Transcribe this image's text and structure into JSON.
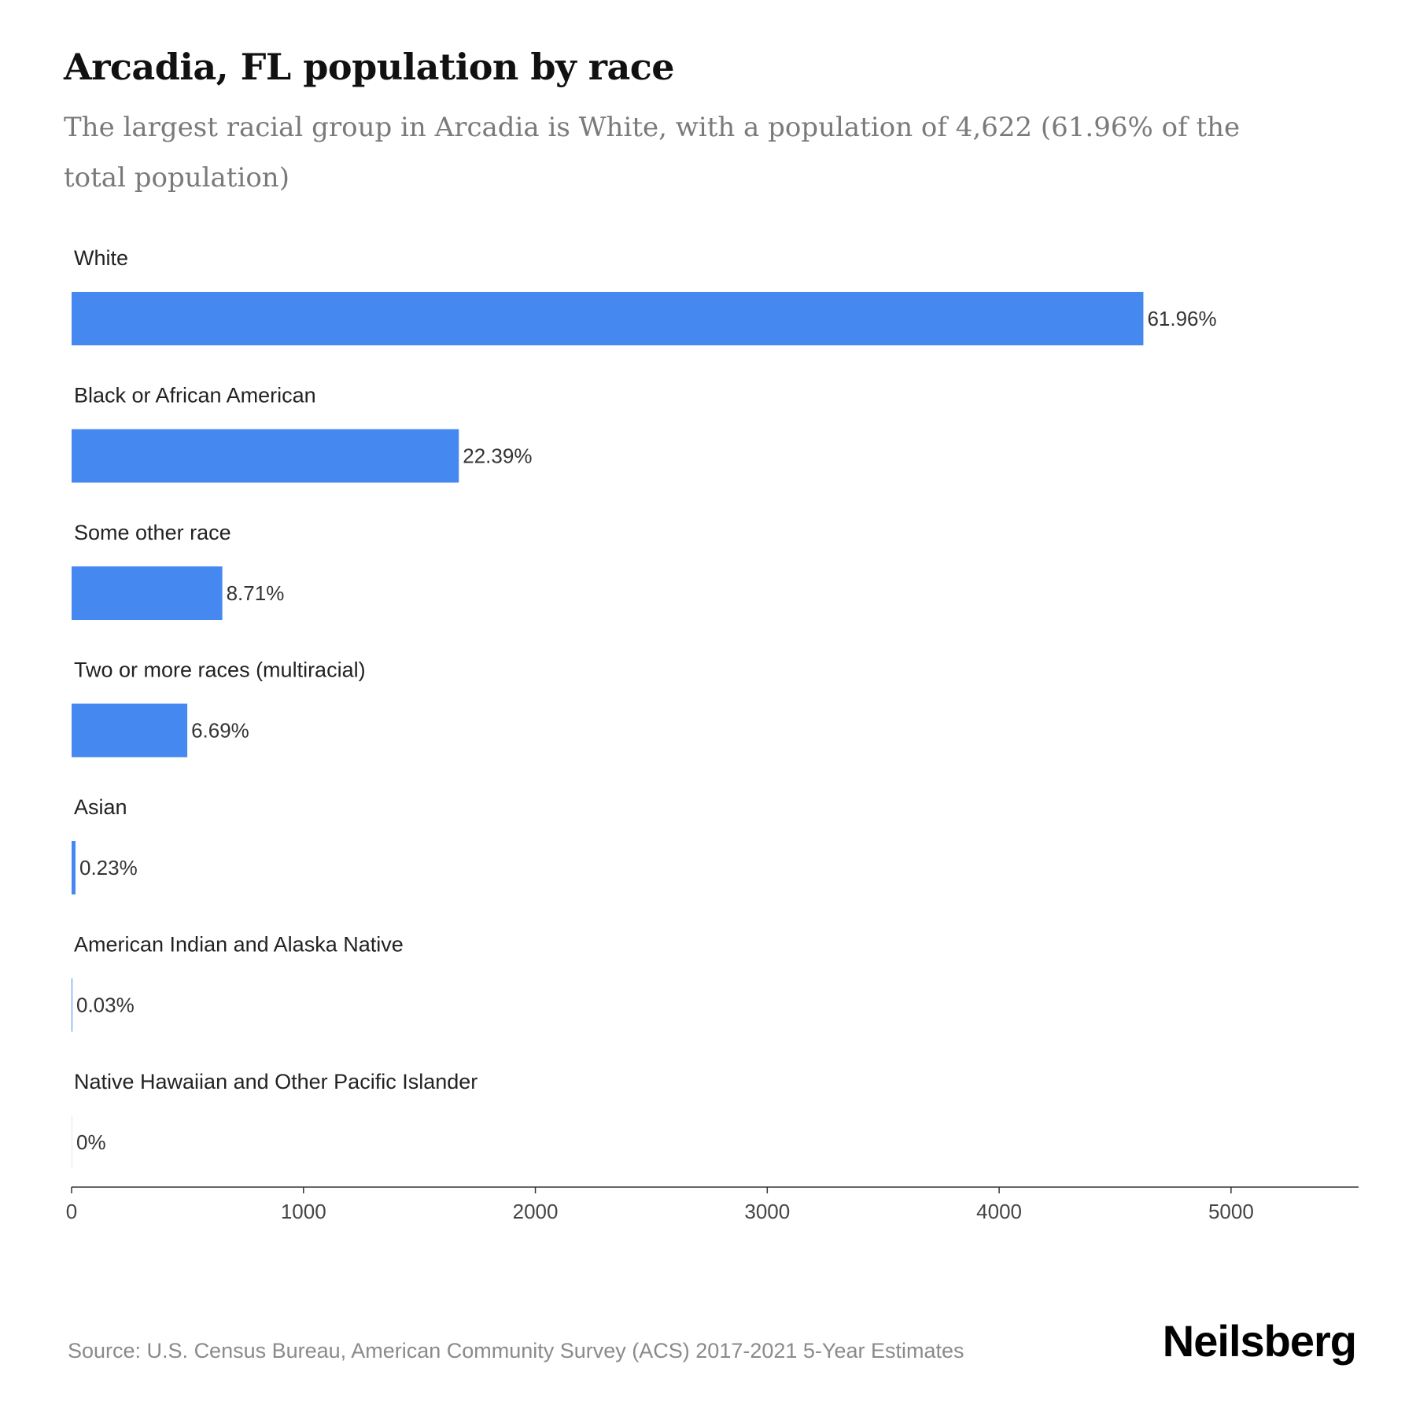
{
  "header": {
    "title": "Arcadia, FL population by race",
    "subtitle": "The largest racial group in Arcadia is White, with a population of 4,622 (61.96% of the total population)"
  },
  "footer": {
    "source": "Source: U.S. Census Bureau, American Community Survey (ACS) 2017-2021 5-Year Estimates",
    "brand": "Neilsberg"
  },
  "colors": {
    "bar": "#4589f0",
    "axis": "#333333"
  },
  "chart_data": {
    "type": "bar",
    "orientation": "horizontal",
    "categories": [
      "White",
      "Black or African American",
      "Some other race",
      "Two or more races (multiracial)",
      "Asian",
      "American Indian and Alaska Native",
      "Native Hawaiian and Other Pacific Islander"
    ],
    "values": [
      4622,
      1670,
      650,
      499,
      17,
      2,
      0
    ],
    "data_labels": [
      "61.96%",
      "22.39%",
      "8.71%",
      "6.69%",
      "0.23%",
      "0.03%",
      "0%"
    ],
    "xlim": [
      0,
      5550
    ],
    "xticks": [
      0,
      1000,
      2000,
      3000,
      4000,
      5000
    ],
    "grid": false,
    "legend": "none"
  }
}
